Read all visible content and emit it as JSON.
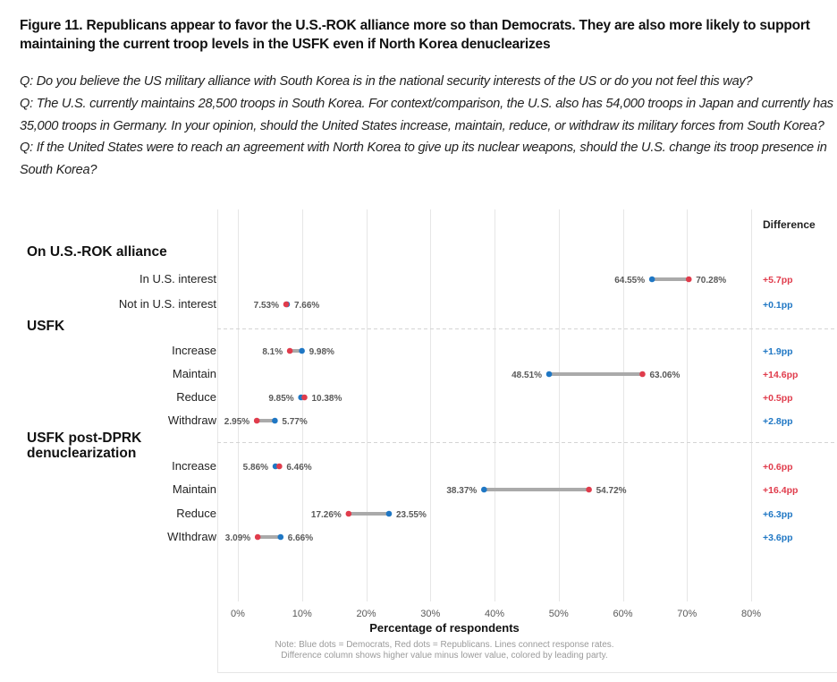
{
  "figure": {
    "title": "Figure 11. Republicans appear to favor the U.S.-ROK alliance more so than Democrats. They are also more likely to support maintaining the current troop levels in the USFK even if North Korea denuclearizes",
    "questions": [
      "Q: Do you believe the US military alliance with South Korea is in the national security interests of the US or do you not feel this way?",
      "Q: The U.S. currently maintains 28,500 troops in South Korea. For context/comparison, the U.S. also has 54,000 troops in Japan and currently has 35,000 troops in Germany. In your opinion, should the United States increase, maintain, reduce, or withdraw its military forces from South Korea?",
      "Q: If the United States were to reach an agreement with North Korea to give up its nuclear weapons, should the U.S. change its troop presence in South Korea?"
    ]
  },
  "colors": {
    "democrats": "#1f77c4",
    "republicans": "#e03c4c",
    "connector": "#aaaaaa",
    "grid": "#e6e6e6"
  },
  "chart_data": {
    "type": "dumbbell",
    "xlabel": "Percentage of respondents",
    "xlim": [
      0,
      80
    ],
    "xticks": [
      0,
      10,
      20,
      30,
      40,
      50,
      60,
      70,
      80
    ],
    "xtick_labels": [
      "0%",
      "10%",
      "20%",
      "30%",
      "40%",
      "50%",
      "60%",
      "70%",
      "80%"
    ],
    "grid": "vertical",
    "difference_header": "Difference",
    "legend": {
      "democrats": "Blue dots = Democrats",
      "republicans": "Red dots = Republicans"
    },
    "note_lines": [
      "Note: Blue dots = Democrats, Red dots = Republicans. Lines connect response rates.",
      "Difference column shows higher value minus lower value, colored by leading party."
    ],
    "groups": [
      {
        "name": "On U.S.-ROK alliance",
        "name_lines": [
          "On U.S.-ROK alliance"
        ],
        "rows": [
          {
            "label": "In U.S. interest",
            "democrats": 64.55,
            "republicans": 70.28,
            "diff": "+5.7pp",
            "leader": "republicans"
          },
          {
            "label": "Not in U.S. interest",
            "democrats": 7.66,
            "republicans": 7.53,
            "diff": "+0.1pp",
            "leader": "democrats"
          }
        ]
      },
      {
        "name": "USFK",
        "name_lines": [
          "USFK"
        ],
        "rows": [
          {
            "label": "Increase",
            "democrats": 9.98,
            "republicans": 8.1,
            "diff": "+1.9pp",
            "leader": "democrats"
          },
          {
            "label": "Maintain",
            "democrats": 48.51,
            "republicans": 63.06,
            "diff": "+14.6pp",
            "leader": "republicans"
          },
          {
            "label": "Reduce",
            "democrats": 9.85,
            "republicans": 10.38,
            "diff": "+0.5pp",
            "leader": "republicans"
          },
          {
            "label": "Withdraw",
            "democrats": 5.77,
            "republicans": 2.95,
            "diff": "+2.8pp",
            "leader": "democrats"
          }
        ]
      },
      {
        "name": "USFK post-DPRK denuclearization",
        "name_lines": [
          "USFK post-DPRK",
          "denuclearization"
        ],
        "rows": [
          {
            "label": "Increase",
            "democrats": 5.86,
            "republicans": 6.46,
            "diff": "+0.6pp",
            "leader": "republicans"
          },
          {
            "label": "Maintain",
            "democrats": 38.37,
            "republicans": 54.72,
            "diff": "+16.4pp",
            "leader": "republicans"
          },
          {
            "label": "Reduce",
            "democrats": 23.55,
            "republicans": 17.26,
            "diff": "+6.3pp",
            "leader": "democrats"
          },
          {
            "label": "WIthdraw",
            "democrats": 6.66,
            "republicans": 3.09,
            "diff": "+3.6pp",
            "leader": "democrats"
          }
        ]
      }
    ]
  }
}
